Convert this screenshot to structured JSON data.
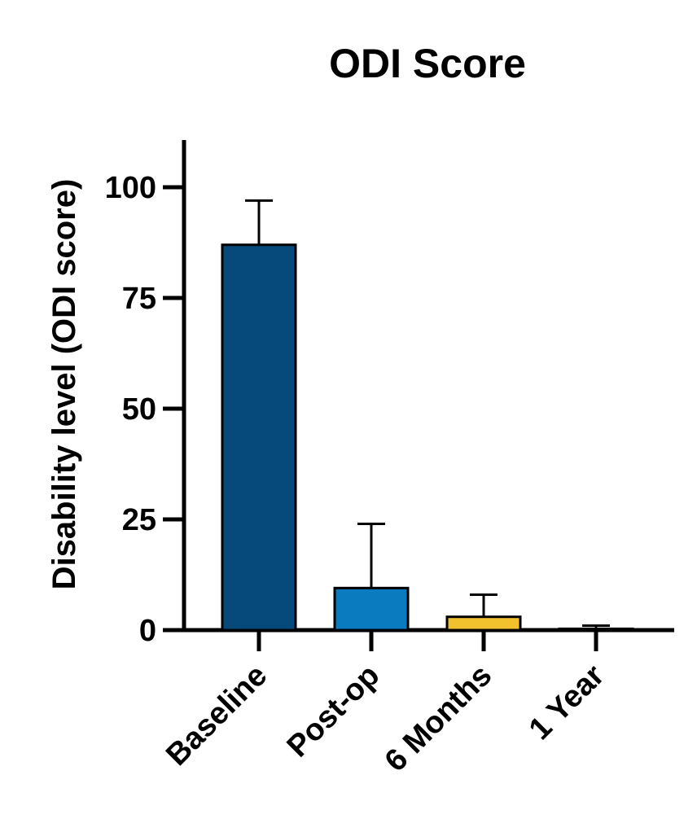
{
  "chart_data": {
    "type": "bar",
    "title": "ODI Score",
    "xlabel": "",
    "ylabel": "Disability level (ODI score)",
    "categories": [
      "Baseline",
      "Post-op",
      "6 Months",
      "1 Year"
    ],
    "values": [
      87,
      9.5,
      3,
      0.3
    ],
    "error_upper": [
      97,
      24,
      8,
      1
    ],
    "ylim": [
      0,
      110
    ],
    "yticks": [
      0,
      25,
      50,
      75,
      100
    ],
    "grid": false,
    "legend": "none",
    "colors": [
      "#064a7c",
      "#0a7bbf",
      "#f2c12e",
      "#000000"
    ]
  }
}
